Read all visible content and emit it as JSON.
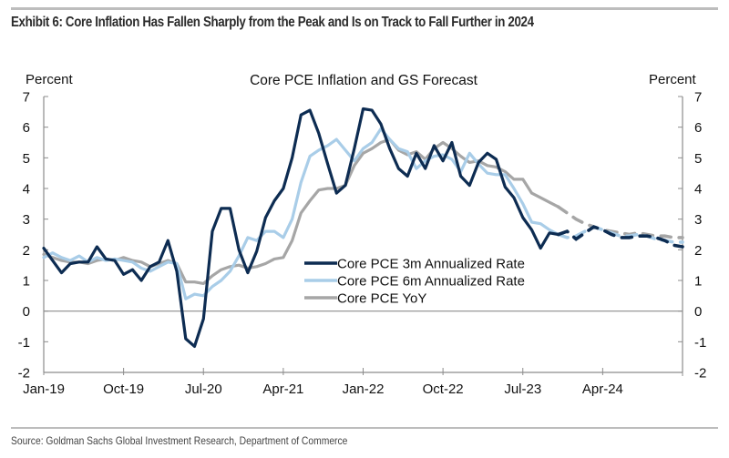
{
  "header": {
    "title": "Exhibit 6: Core Inflation Has Fallen Sharply from the Peak and Is on Track to Fall Further in 2024"
  },
  "footer": {
    "source": "Source: Goldman Sachs Global Investment Research, Department of Commerce"
  },
  "chart_data": {
    "type": "line",
    "title": "Core PCE Inflation and GS Forecast",
    "ylabel_left": "Percent",
    "ylabel_right": "Percent",
    "xlabel": "",
    "ylim": [
      -2,
      7
    ],
    "yticks": [
      7,
      6,
      5,
      4,
      3,
      2,
      1,
      0,
      -1,
      -2
    ],
    "ytick_labels": [
      "7",
      "6",
      "5",
      "4",
      "3",
      "2",
      "1",
      "0",
      "-1",
      "-2"
    ],
    "x_start": "Jan-19",
    "x_end": "Jan-25",
    "x_months_total": 72,
    "xtick_labels": [
      "Jan-19",
      "Oct-19",
      "Jul-20",
      "Apr-21",
      "Jan-22",
      "Oct-22",
      "Jul-23",
      "Apr-24"
    ],
    "xtick_month_index": [
      0,
      9,
      18,
      27,
      36,
      45,
      54,
      63
    ],
    "grid": false,
    "zero_line": true,
    "legend_position": "center-right",
    "forecast_start_month_index": 58,
    "colors": {
      "core_pce_3m": "#0d2c52",
      "core_pce_6m": "#a9cde8",
      "core_pce_yoy": "#a6a6a6",
      "axis": "#8c8c8c"
    },
    "series": [
      {
        "name": "Core PCE 3m Annualized Rate",
        "key": "core_pce_3m",
        "values": [
          2.05,
          1.65,
          1.25,
          1.55,
          1.6,
          1.6,
          2.1,
          1.7,
          1.65,
          1.2,
          1.35,
          1.0,
          1.45,
          1.6,
          2.3,
          1.3,
          -0.9,
          -1.15,
          -0.25,
          2.6,
          3.35,
          3.35,
          2.0,
          1.25,
          1.95,
          3.05,
          3.6,
          4.0,
          5.0,
          6.4,
          6.55,
          5.8,
          4.8,
          3.85,
          4.1,
          5.3,
          6.6,
          6.55,
          6.1,
          5.3,
          4.65,
          4.4,
          5.15,
          4.65,
          5.4,
          4.9,
          5.5,
          4.4,
          4.1,
          4.85,
          5.15,
          4.95,
          4.05,
          3.7,
          3.05,
          2.65,
          2.05,
          2.55,
          2.5,
          2.6,
          2.35,
          2.55,
          2.75,
          2.65,
          2.5,
          2.4,
          2.4,
          2.45,
          2.45,
          2.4,
          2.3,
          2.15,
          2.1
        ],
        "dashed_from_index": 58
      },
      {
        "name": "Core PCE 6m Annualized Rate",
        "key": "core_pce_6m",
        "values": [
          1.75,
          1.9,
          1.75,
          1.65,
          1.8,
          1.6,
          1.75,
          1.65,
          1.7,
          1.65,
          1.6,
          1.4,
          1.3,
          1.45,
          1.6,
          1.55,
          0.4,
          0.55,
          0.5,
          0.8,
          1.0,
          1.3,
          1.8,
          2.4,
          2.3,
          2.6,
          2.6,
          2.4,
          3.0,
          4.2,
          5.05,
          5.25,
          5.4,
          5.6,
          5.25,
          4.9,
          5.3,
          5.5,
          5.95,
          5.6,
          5.3,
          5.2,
          4.65,
          4.9,
          5.05,
          5.1,
          4.95,
          4.55,
          5.15,
          4.8,
          4.5,
          4.45,
          4.45,
          4.0,
          3.5,
          2.9,
          2.85,
          2.65,
          2.5,
          2.4,
          2.45,
          2.6,
          2.75,
          2.65,
          2.55,
          2.45,
          2.45,
          2.5,
          2.45,
          2.35,
          2.3,
          2.25,
          2.25
        ],
        "dashed_from_index": 58
      },
      {
        "name": "Core PCE YoY",
        "key": "core_pce_yoy",
        "values": [
          1.85,
          1.75,
          1.65,
          1.6,
          1.6,
          1.55,
          1.65,
          1.7,
          1.65,
          1.75,
          1.65,
          1.6,
          1.45,
          1.55,
          1.65,
          1.55,
          0.95,
          0.95,
          0.9,
          1.15,
          1.35,
          1.45,
          1.5,
          1.4,
          1.45,
          1.55,
          1.7,
          1.75,
          2.3,
          3.2,
          3.6,
          3.95,
          4.0,
          4.0,
          4.1,
          4.75,
          5.15,
          5.3,
          5.5,
          5.6,
          5.25,
          5.1,
          5.2,
          4.95,
          5.3,
          5.5,
          5.3,
          5.05,
          4.85,
          4.9,
          4.75,
          4.7,
          4.55,
          4.3,
          4.3,
          3.85,
          3.7,
          3.55,
          3.4,
          3.2,
          3.0,
          2.85,
          2.75,
          2.65,
          2.6,
          2.55,
          2.5,
          2.55,
          2.5,
          2.45,
          2.45,
          2.4,
          2.4
        ],
        "dashed_from_index": 58
      }
    ]
  }
}
